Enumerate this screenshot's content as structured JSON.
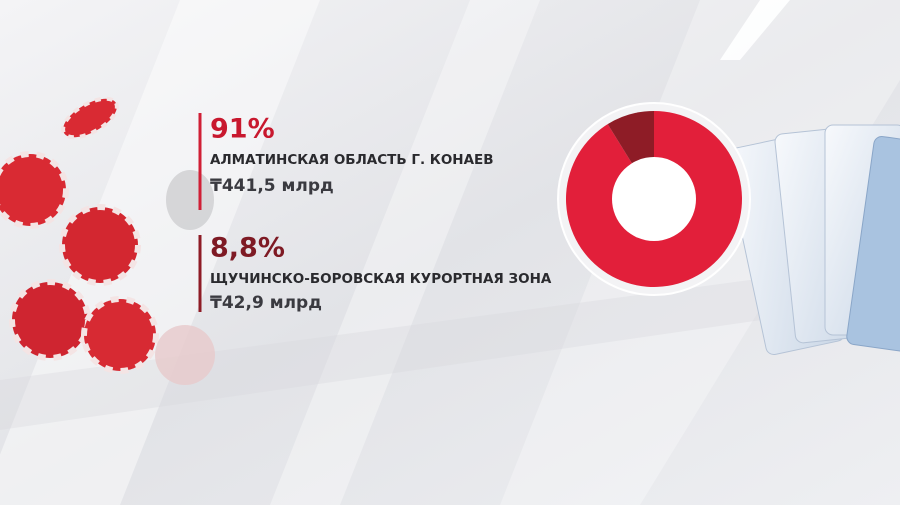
{
  "chart_data": {
    "type": "donut",
    "categories": [
      "АЛМАТИНСКАЯ ОБЛАСТЬ Г. КОНАЕВ",
      "ЩУЧИНСКО-БОРОВСКАЯ КУРОРТНАЯ ЗОНА"
    ],
    "values": [
      91,
      8.8
    ],
    "value_labels": [
      "91%",
      "8,8%"
    ],
    "amount_labels": [
      "₸441,5 млрд",
      "₸42,9 млрд"
    ],
    "colors": [
      "#e21f3a",
      "#8e1c26"
    ]
  }
}
